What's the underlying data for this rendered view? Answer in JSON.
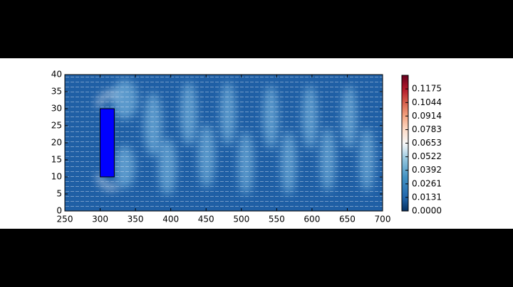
{
  "chart_data": {
    "type": "heatmap",
    "xlim": [
      250,
      700
    ],
    "ylim": [
      0,
      40
    ],
    "xticks": [
      250,
      300,
      350,
      400,
      450,
      500,
      550,
      600,
      650,
      700
    ],
    "yticks": [
      0,
      5,
      10,
      15,
      20,
      25,
      30,
      35,
      40
    ],
    "rectangle": {
      "x": [
        300,
        320
      ],
      "y": [
        10,
        30
      ],
      "color": "#0000ff"
    },
    "colorbar": {
      "lim": [
        0,
        0.1306
      ],
      "ticks": [
        {
          "value": 0,
          "label": "0.0000"
        },
        0.0131,
        0.0261,
        0.0392,
        0.0522,
        0.0653,
        0.0783,
        0.0914,
        0.1044,
        0.1175
      ]
    }
  }
}
